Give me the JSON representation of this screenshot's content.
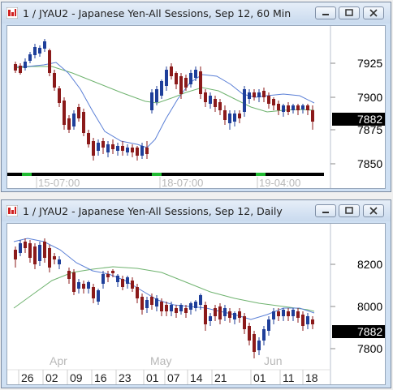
{
  "windows": [
    {
      "title": "1 / JYAU2 - Japanese Yen-All Sessions, Sep 12, 60 Min",
      "price_axis": [
        "7925",
        "7900",
        "7875",
        "7850"
      ],
      "last_price": "7882",
      "time_axis": [
        "15-07:00",
        "18-07:00",
        "19-04:00"
      ]
    },
    {
      "title": "1 / JYAU2 - Japanese Yen-All Sessions, Sep 12, Daily",
      "price_axis": [
        "8200",
        "8000",
        "7800"
      ],
      "last_price": "7882",
      "months": [
        "Apr",
        "May",
        "Jun"
      ],
      "days": [
        "26",
        "02",
        "09",
        "16",
        "23",
        "01",
        "07",
        "14",
        "21",
        "01",
        "11",
        "18"
      ]
    }
  ],
  "colors": {
    "up": "#1f3f9a",
    "down": "#8b1a1a",
    "ma_fast": "#5a7fd6",
    "ma_slow": "#6fb36f",
    "price_tag_bg": "#000000",
    "session_bar": "#22bb33"
  },
  "icons": {
    "app": "chart-app-icon",
    "minimize": "minimize-icon",
    "maximize": "maximize-icon",
    "close": "close-icon"
  }
}
